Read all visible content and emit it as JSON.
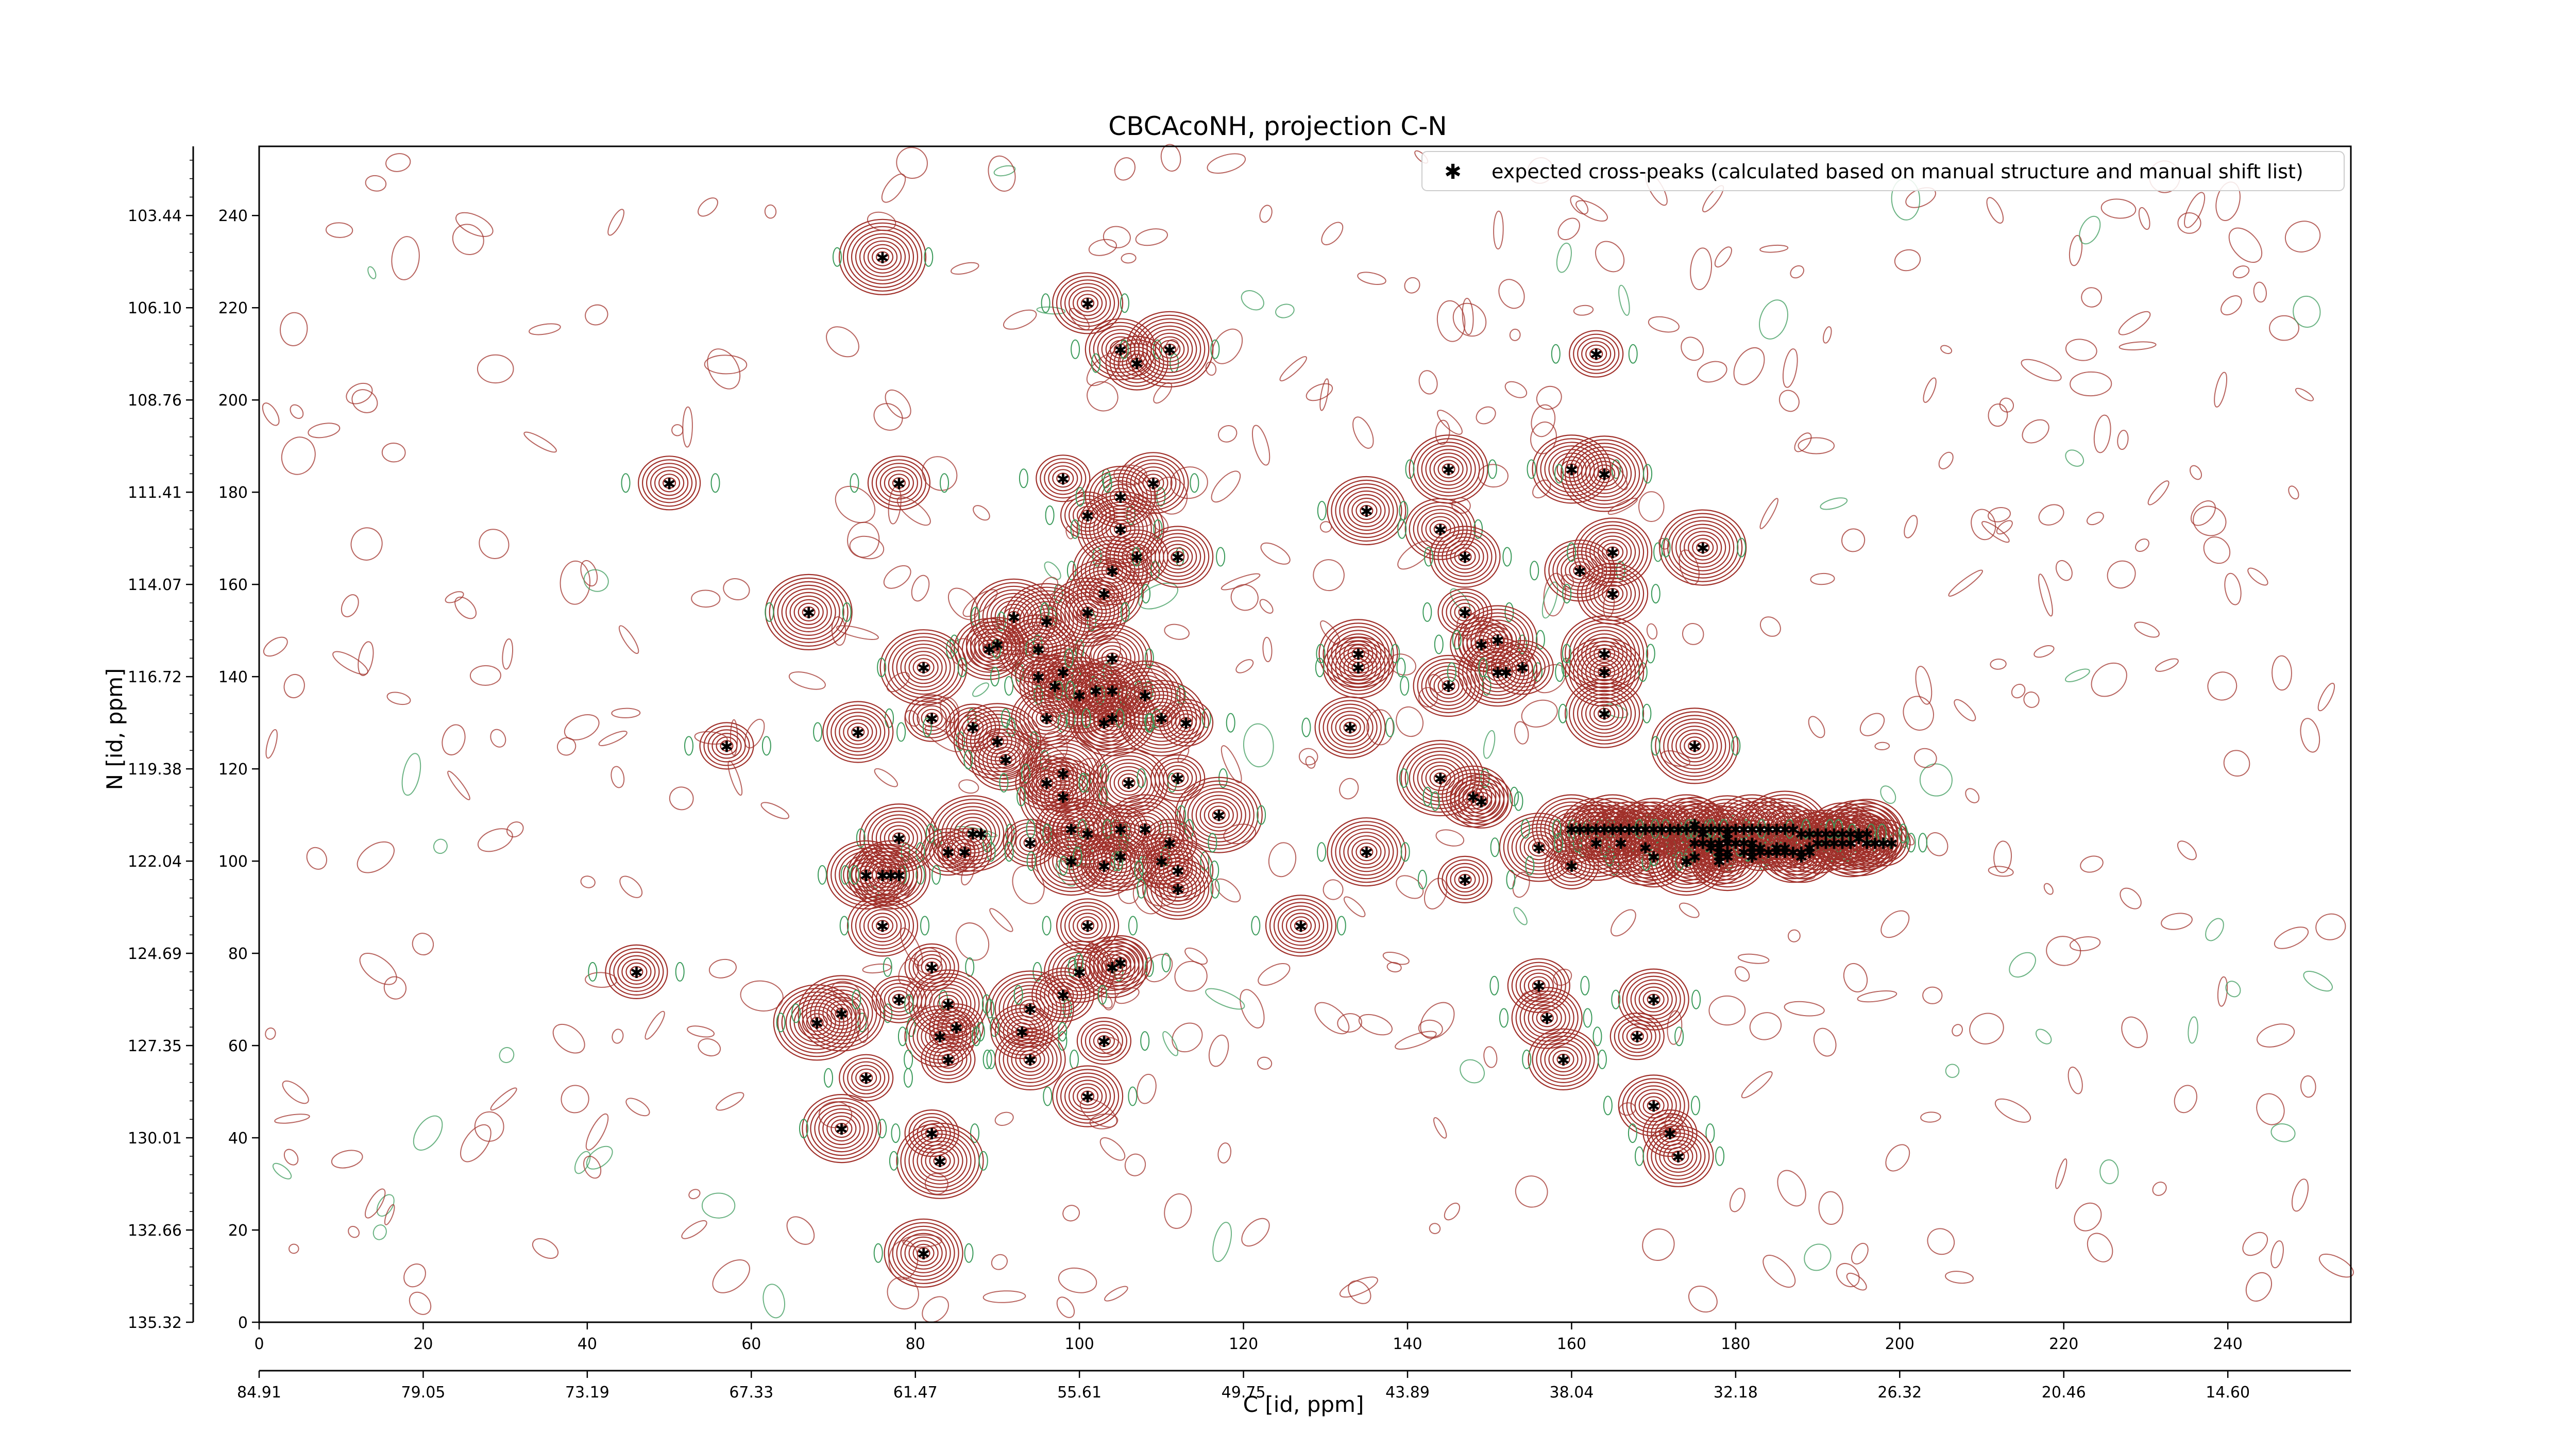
{
  "chart_data": {
    "type": "scatter",
    "title": "CBCAcoNH, projection C-N",
    "xlabel": "C [id, ppm]",
    "ylabel": "N [id, ppm]",
    "xlim": [
      0,
      255
    ],
    "ylim": [
      0,
      255
    ],
    "x_ticks": [
      0,
      20,
      40,
      60,
      80,
      100,
      120,
      140,
      160,
      180,
      200,
      220,
      240
    ],
    "x_ticks_ppm": [
      "84.91",
      "79.05",
      "73.19",
      "67.33",
      "61.47",
      "55.61",
      "49.75",
      "43.89",
      "38.04",
      "32.18",
      "26.32",
      "20.46",
      "14.60"
    ],
    "y_ticks": [
      0,
      20,
      40,
      60,
      80,
      100,
      120,
      140,
      160,
      180,
      200,
      220,
      240
    ],
    "y_ticks_ppm": [
      "135.32",
      "132.66",
      "130.01",
      "127.35",
      "124.69",
      "122.04",
      "119.38",
      "116.72",
      "114.07",
      "111.41",
      "108.76",
      "106.10",
      "103.44"
    ],
    "grid": false,
    "legend_position": "top-right",
    "colors": {
      "contour_positive": "#a0302a",
      "contour_negative": "#3a9a5a",
      "marker": "#0000dd"
    },
    "series": [
      {
        "name": "expected cross-peaks (calculated based on manual structure and manual shift list)",
        "points": [
          [
            76,
            231
          ],
          [
            101,
            221
          ],
          [
            105,
            211
          ],
          [
            107,
            208
          ],
          [
            111,
            211
          ],
          [
            50,
            182
          ],
          [
            78,
            182
          ],
          [
            98,
            183
          ],
          [
            101,
            175
          ],
          [
            105,
            179
          ],
          [
            105,
            172
          ],
          [
            109,
            182
          ],
          [
            107,
            166
          ],
          [
            104,
            163
          ],
          [
            103,
            158
          ],
          [
            112,
            166
          ],
          [
            67,
            154
          ],
          [
            92,
            153
          ],
          [
            96,
            152
          ],
          [
            101,
            154
          ],
          [
            98,
            141
          ],
          [
            90,
            147
          ],
          [
            89,
            146
          ],
          [
            95,
            146
          ],
          [
            81,
            142
          ],
          [
            95,
            140
          ],
          [
            97,
            138
          ],
          [
            100,
            136
          ],
          [
            104,
            144
          ],
          [
            102,
            137
          ],
          [
            104,
            137
          ],
          [
            108,
            136
          ],
          [
            104,
            131
          ],
          [
            103,
            130
          ],
          [
            110,
            131
          ],
          [
            113,
            130
          ],
          [
            82,
            131
          ],
          [
            90,
            126
          ],
          [
            96,
            131
          ],
          [
            87,
            129
          ],
          [
            73,
            128
          ],
          [
            57,
            125
          ],
          [
            91,
            122
          ],
          [
            96,
            117
          ],
          [
            98,
            119
          ],
          [
            98,
            114
          ],
          [
            106,
            117
          ],
          [
            112,
            118
          ],
          [
            117,
            110
          ],
          [
            78,
            105
          ],
          [
            87,
            106
          ],
          [
            88,
            106
          ],
          [
            94,
            104
          ],
          [
            99,
            107
          ],
          [
            101,
            106
          ],
          [
            105,
            107
          ],
          [
            108,
            107
          ],
          [
            111,
            104
          ],
          [
            84,
            102
          ],
          [
            86,
            102
          ],
          [
            99,
            100
          ],
          [
            103,
            99
          ],
          [
            105,
            101
          ],
          [
            110,
            100
          ],
          [
            112,
            98
          ],
          [
            74,
            97
          ],
          [
            76,
            97
          ],
          [
            77,
            97
          ],
          [
            78,
            97
          ],
          [
            112,
            94
          ],
          [
            76,
            86
          ],
          [
            101,
            86
          ],
          [
            100,
            76
          ],
          [
            104,
            77
          ],
          [
            105,
            78
          ],
          [
            46,
            76
          ],
          [
            82,
            77
          ],
          [
            68,
            65
          ],
          [
            71,
            67
          ],
          [
            78,
            70
          ],
          [
            84,
            69
          ],
          [
            94,
            68
          ],
          [
            85,
            64
          ],
          [
            83,
            62
          ],
          [
            93,
            63
          ],
          [
            98,
            71
          ],
          [
            103,
            61
          ],
          [
            84,
            57
          ],
          [
            94,
            57
          ],
          [
            74,
            53
          ],
          [
            101,
            49
          ],
          [
            71,
            42
          ],
          [
            82,
            41
          ],
          [
            83,
            35
          ],
          [
            81,
            15
          ],
          [
            127,
            86
          ],
          [
            135,
            102
          ],
          [
            134,
            145
          ],
          [
            134,
            142
          ],
          [
            133,
            129
          ],
          [
            135,
            176
          ],
          [
            144,
            172
          ],
          [
            144,
            118
          ],
          [
            145,
            138
          ],
          [
            145,
            185
          ],
          [
            147,
            166
          ],
          [
            147,
            154
          ],
          [
            148,
            114
          ],
          [
            149,
            113
          ],
          [
            147,
            96
          ],
          [
            149,
            147
          ],
          [
            151,
            148
          ],
          [
            151,
            141
          ],
          [
            152,
            141
          ],
          [
            154,
            142
          ],
          [
            156,
            73
          ],
          [
            157,
            66
          ],
          [
            159,
            57
          ],
          [
            156,
            103
          ],
          [
            160,
            99
          ],
          [
            160,
            107
          ],
          [
            160,
            185
          ],
          [
            161,
            163
          ],
          [
            163,
            104
          ],
          [
            164,
            184
          ],
          [
            163,
            210
          ],
          [
            164,
            141
          ],
          [
            164,
            145
          ],
          [
            164,
            132
          ],
          [
            165,
            167
          ],
          [
            165,
            158
          ],
          [
            166,
            104
          ],
          [
            169,
            103
          ],
          [
            170,
            101
          ],
          [
            168,
            62
          ],
          [
            170,
            70
          ],
          [
            170,
            47
          ],
          [
            172,
            41
          ],
          [
            173,
            36
          ],
          [
            174,
            100
          ],
          [
            175,
            101
          ],
          [
            175,
            125
          ],
          [
            175,
            104
          ],
          [
            175,
            108
          ],
          [
            176,
            106
          ],
          [
            176,
            104
          ],
          [
            176,
            168
          ],
          [
            177,
            103
          ],
          [
            177,
            104
          ],
          [
            178,
            100
          ],
          [
            178,
            101
          ],
          [
            178,
            104
          ],
          [
            178,
            104
          ],
          [
            179,
            101
          ],
          [
            179,
            106
          ],
          [
            178,
            102
          ],
          [
            178,
            103
          ],
          [
            179,
            102
          ],
          [
            179,
            105
          ],
          [
            179,
            104
          ],
          [
            180,
            104
          ],
          [
            181,
            104
          ],
          [
            182,
            104
          ],
          [
            183,
            103
          ],
          [
            182,
            101
          ],
          [
            180,
            104
          ],
          [
            181,
            102
          ],
          [
            181,
            102
          ],
          [
            182,
            103
          ],
          [
            182,
            102
          ],
          [
            183,
            102
          ],
          [
            185,
            103
          ],
          [
            186,
            103
          ],
          [
            185,
            103
          ],
          [
            184,
            102
          ],
          [
            185,
            102
          ],
          [
            186,
            102
          ],
          [
            187,
            102
          ],
          [
            188,
            102
          ],
          [
            188,
            101
          ],
          [
            189,
            102
          ],
          [
            189,
            103
          ],
          [
            190,
            104
          ],
          [
            191,
            104
          ],
          [
            192,
            104
          ],
          [
            193,
            104
          ],
          [
            194,
            104
          ],
          [
            195,
            105
          ],
          [
            196,
            104
          ],
          [
            197,
            104
          ],
          [
            198,
            104
          ],
          [
            199,
            104
          ],
          [
            196,
            106
          ],
          [
            195,
            106
          ],
          [
            194,
            106
          ],
          [
            193,
            106
          ],
          [
            192,
            106
          ],
          [
            191,
            106
          ],
          [
            190,
            106
          ],
          [
            189,
            106
          ],
          [
            188,
            106
          ],
          [
            187,
            107
          ],
          [
            186,
            107
          ],
          [
            185,
            107
          ],
          [
            184,
            107
          ],
          [
            183,
            107
          ],
          [
            182,
            107
          ],
          [
            181,
            107
          ],
          [
            180,
            107
          ],
          [
            179,
            107
          ],
          [
            178,
            107
          ],
          [
            177,
            107
          ],
          [
            176,
            107
          ],
          [
            175,
            107
          ],
          [
            174,
            107
          ],
          [
            173,
            107
          ],
          [
            172,
            107
          ],
          [
            171,
            107
          ],
          [
            170,
            107
          ],
          [
            169,
            107
          ],
          [
            168,
            107
          ],
          [
            167,
            107
          ],
          [
            166,
            107
          ],
          [
            165,
            107
          ],
          [
            164,
            107
          ],
          [
            163,
            107
          ],
          [
            162,
            107
          ],
          [
            161,
            107
          ]
        ]
      }
    ]
  }
}
